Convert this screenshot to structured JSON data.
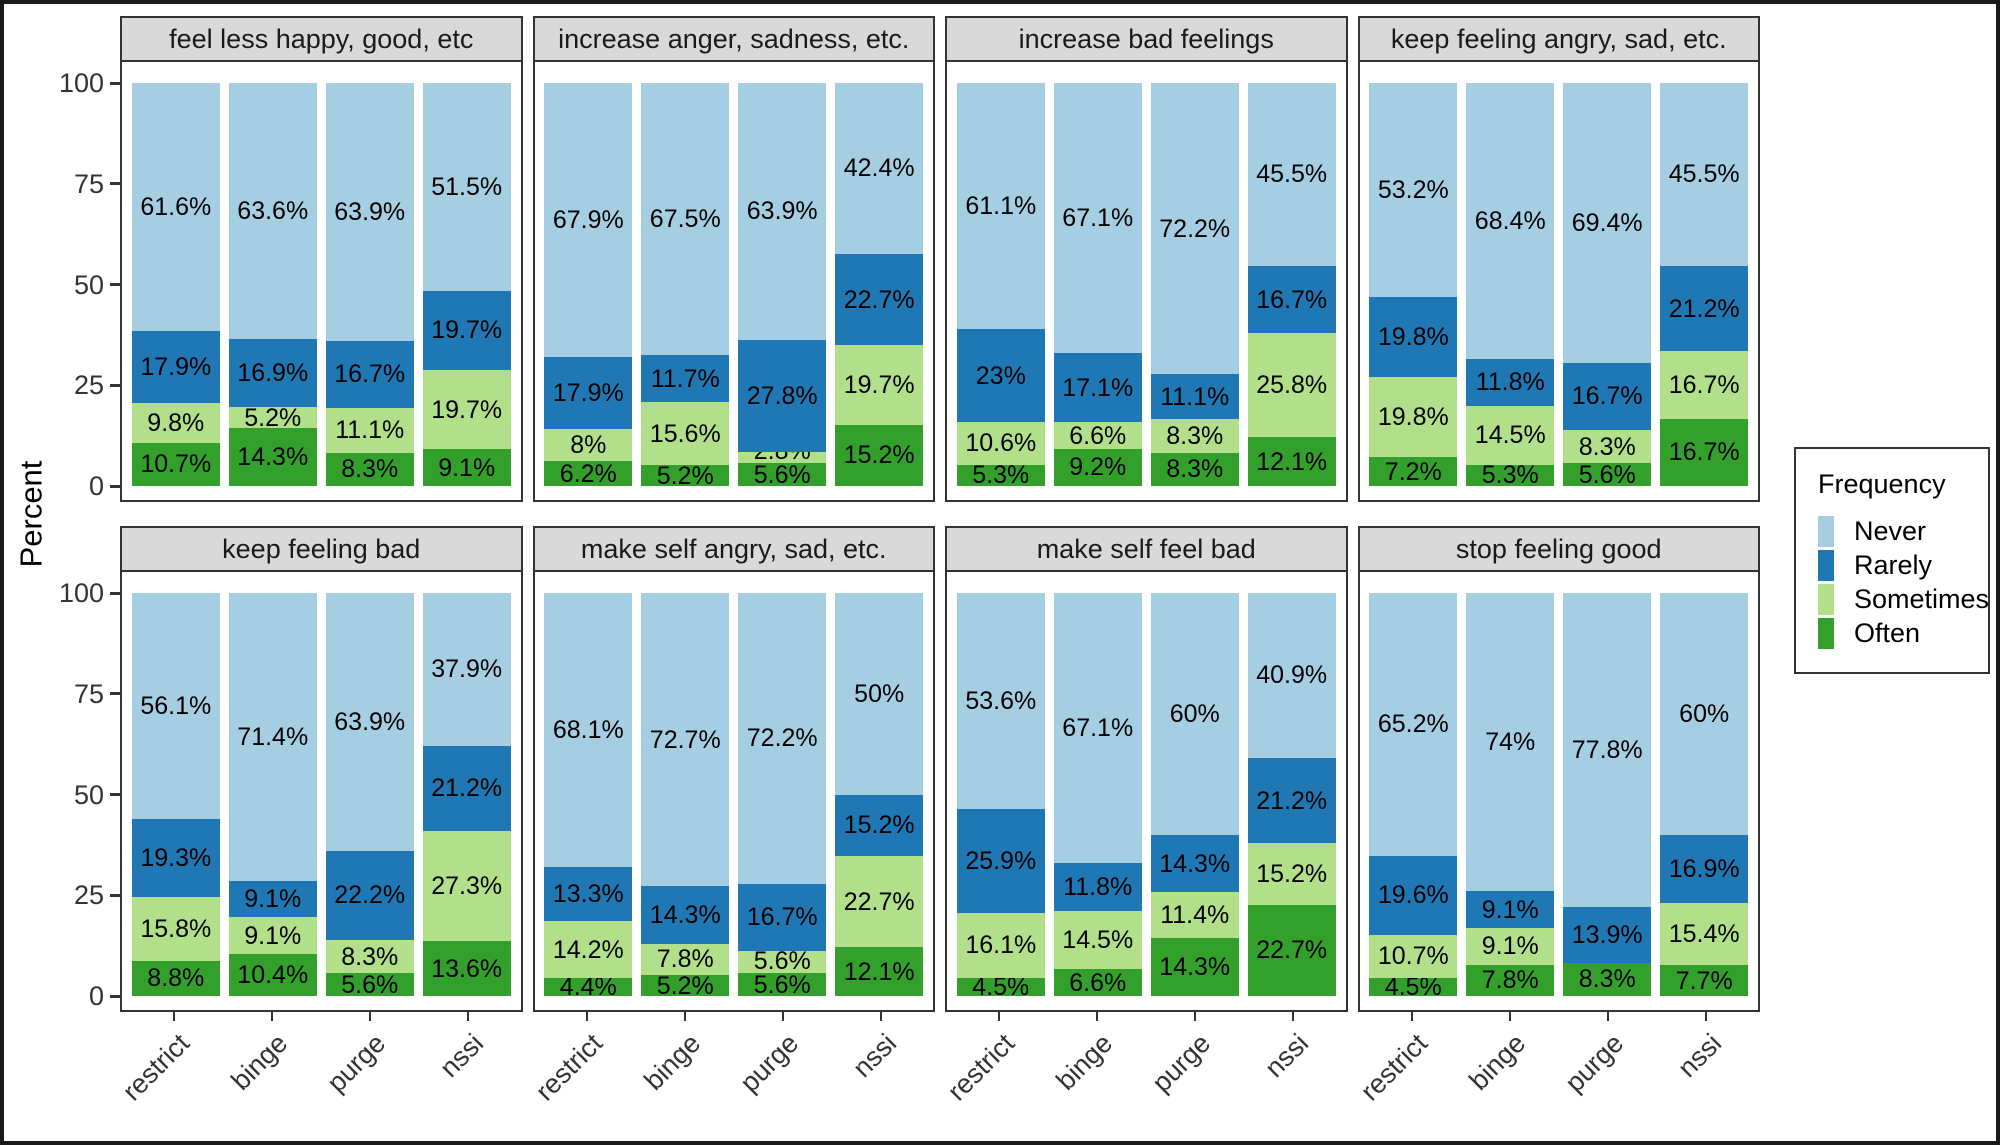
{
  "chart_data": {
    "type": "bar",
    "stacked": true,
    "orientation": "vertical",
    "grid": false,
    "ylabel": "Percent",
    "ylim": [
      0,
      100
    ],
    "yticks": [
      100,
      75,
      50,
      25,
      0
    ],
    "categories": [
      "restrict",
      "binge",
      "purge",
      "nssi"
    ],
    "value_suffix": "%",
    "legend": {
      "title": "Frequency",
      "position": "right",
      "items": [
        {
          "label": "Never",
          "color": "#A6CEE3"
        },
        {
          "label": "Rarely",
          "color": "#1F78B4"
        },
        {
          "label": "Sometimes",
          "color": "#B2DF8A"
        },
        {
          "label": "Often",
          "color": "#33A02C"
        }
      ]
    },
    "panel_header_color": "#D9D9D9",
    "panels": [
      {
        "title": "feel less happy, good, etc",
        "values": {
          "restrict": {
            "Never": 61.6,
            "Rarely": 17.9,
            "Sometimes": 9.8,
            "Often": 10.7
          },
          "binge": {
            "Never": 63.6,
            "Rarely": 16.9,
            "Sometimes": 5.2,
            "Often": 14.3
          },
          "purge": {
            "Never": 63.9,
            "Rarely": 16.7,
            "Sometimes": 11.1,
            "Often": 8.3
          },
          "nssi": {
            "Never": 51.5,
            "Rarely": 19.7,
            "Sometimes": 19.7,
            "Often": 9.1
          }
        }
      },
      {
        "title": "increase anger, sadness, etc.",
        "values": {
          "restrict": {
            "Never": 67.9,
            "Rarely": 17.9,
            "Sometimes": 8,
            "Often": 6.2
          },
          "binge": {
            "Never": 67.5,
            "Rarely": 11.7,
            "Sometimes": 15.6,
            "Often": 5.2
          },
          "purge": {
            "Never": 63.9,
            "Rarely": 27.8,
            "Sometimes": 2.8,
            "Often": 5.6
          },
          "nssi": {
            "Never": 42.4,
            "Rarely": 22.7,
            "Sometimes": 19.7,
            "Often": 15.2
          }
        }
      },
      {
        "title": "increase bad feelings",
        "values": {
          "restrict": {
            "Never": 61.1,
            "Rarely": 23,
            "Sometimes": 10.6,
            "Often": 5.3
          },
          "binge": {
            "Never": 67.1,
            "Rarely": 17.1,
            "Sometimes": 6.6,
            "Often": 9.2
          },
          "purge": {
            "Never": 72.2,
            "Rarely": 11.1,
            "Sometimes": 8.3,
            "Often": 8.3
          },
          "nssi": {
            "Never": 45.5,
            "Rarely": 16.7,
            "Sometimes": 25.8,
            "Often": 12.1
          }
        }
      },
      {
        "title": "keep feeling angry, sad, etc.",
        "values": {
          "restrict": {
            "Never": 53.2,
            "Rarely": 19.8,
            "Sometimes": 19.8,
            "Often": 7.2
          },
          "binge": {
            "Never": 68.4,
            "Rarely": 11.8,
            "Sometimes": 14.5,
            "Often": 5.3
          },
          "purge": {
            "Never": 69.4,
            "Rarely": 16.7,
            "Sometimes": 8.3,
            "Often": 5.6
          },
          "nssi": {
            "Never": 45.5,
            "Rarely": 21.2,
            "Sometimes": 16.7,
            "Often": 16.7
          }
        }
      },
      {
        "title": "keep feeling bad",
        "values": {
          "restrict": {
            "Never": 56.1,
            "Rarely": 19.3,
            "Sometimes": 15.8,
            "Often": 8.8
          },
          "binge": {
            "Never": 71.4,
            "Rarely": 9.1,
            "Sometimes": 9.1,
            "Often": 10.4
          },
          "purge": {
            "Never": 63.9,
            "Rarely": 22.2,
            "Sometimes": 8.3,
            "Often": 5.6
          },
          "nssi": {
            "Never": 37.9,
            "Rarely": 21.2,
            "Sometimes": 27.3,
            "Often": 13.6
          }
        }
      },
      {
        "title": "make self angry, sad, etc.",
        "values": {
          "restrict": {
            "Never": 68.1,
            "Rarely": 13.3,
            "Sometimes": 14.2,
            "Often": 4.4
          },
          "binge": {
            "Never": 72.7,
            "Rarely": 14.3,
            "Sometimes": 7.8,
            "Often": 5.2
          },
          "purge": {
            "Never": 72.2,
            "Rarely": 16.7,
            "Sometimes": 5.6,
            "Often": 5.6
          },
          "nssi": {
            "Never": 50,
            "Rarely": 15.2,
            "Sometimes": 22.7,
            "Often": 12.1
          }
        }
      },
      {
        "title": "make self feel bad",
        "values": {
          "restrict": {
            "Never": 53.6,
            "Rarely": 25.9,
            "Sometimes": 16.1,
            "Often": 4.5
          },
          "binge": {
            "Never": 67.1,
            "Rarely": 11.8,
            "Sometimes": 14.5,
            "Often": 6.6
          },
          "purge": {
            "Never": 60,
            "Rarely": 14.3,
            "Sometimes": 11.4,
            "Often": 14.3
          },
          "nssi": {
            "Never": 40.9,
            "Rarely": 21.2,
            "Sometimes": 15.2,
            "Often": 22.7
          }
        }
      },
      {
        "title": "stop feeling good",
        "values": {
          "restrict": {
            "Never": 65.2,
            "Rarely": 19.6,
            "Sometimes": 10.7,
            "Often": 4.5
          },
          "binge": {
            "Never": 74,
            "Rarely": 9.1,
            "Sometimes": 9.1,
            "Often": 7.8
          },
          "purge": {
            "Never": 77.8,
            "Rarely": 13.9,
            "Sometimes": 0,
            "Often": 8.3
          },
          "nssi": {
            "Never": 60,
            "Rarely": 16.9,
            "Sometimes": 15.4,
            "Often": 7.7
          }
        }
      }
    ]
  }
}
